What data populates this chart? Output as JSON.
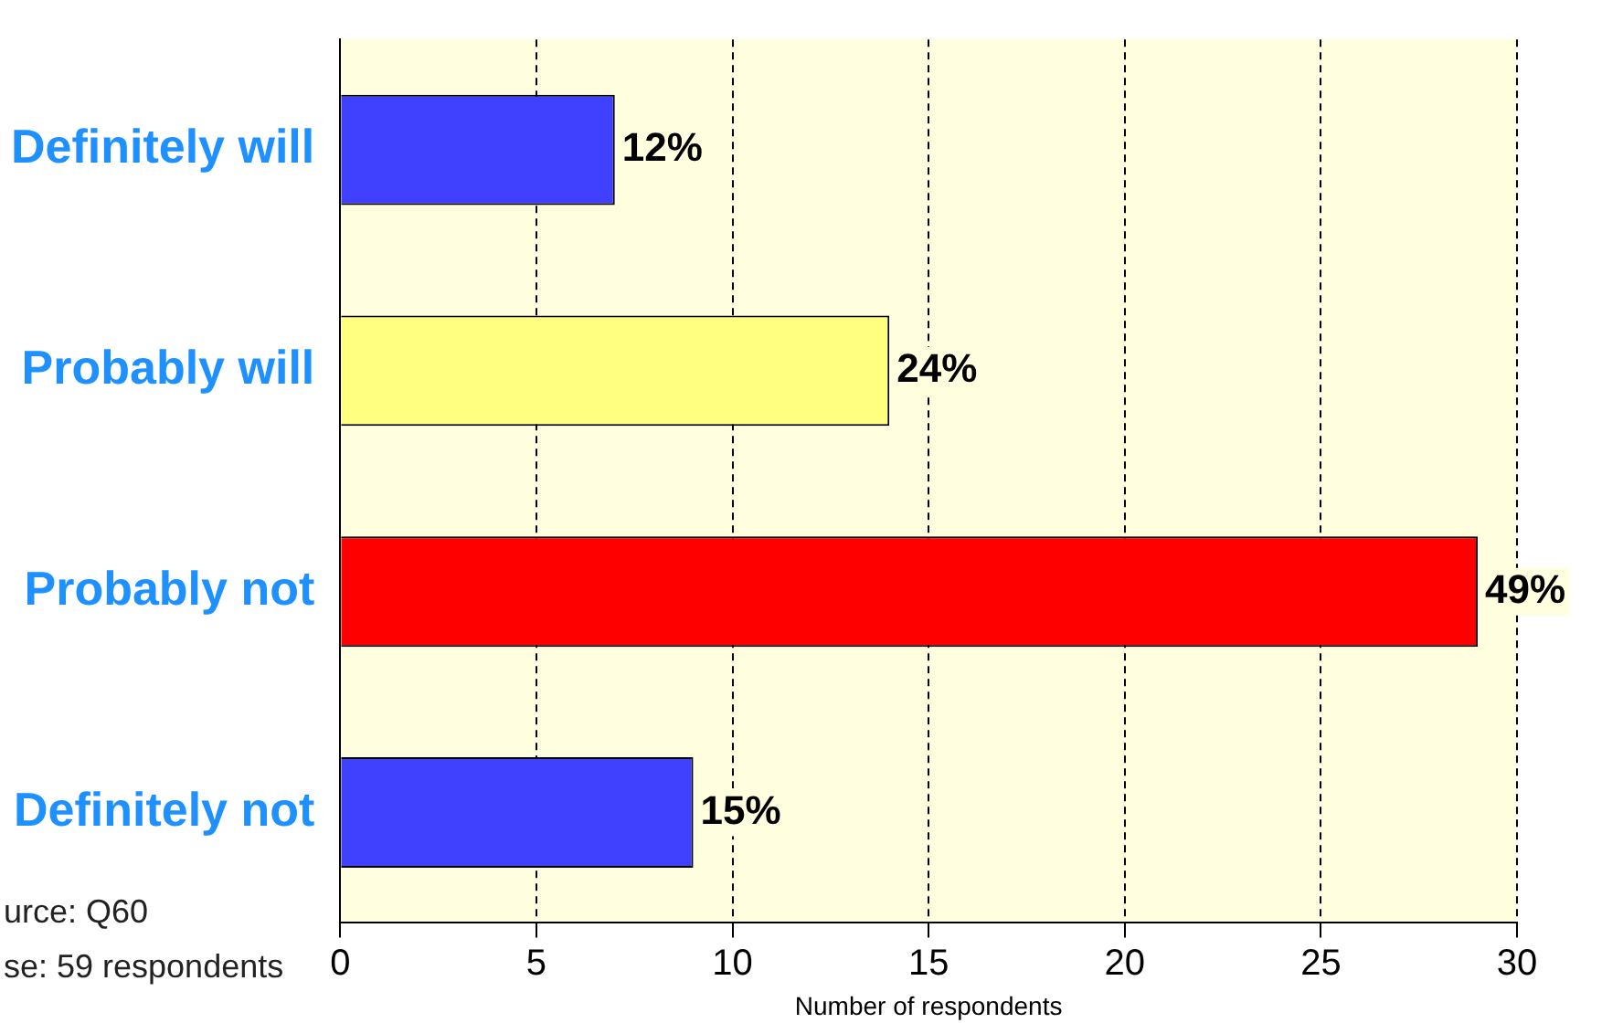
{
  "chart_data": {
    "type": "bar",
    "orientation": "horizontal",
    "categories": [
      "Definitely will",
      "Probably will",
      "Probably not",
      "Definitely not"
    ],
    "values": [
      7,
      14,
      29,
      9
    ],
    "colors": [
      "#4040ff",
      "#ffff80",
      "#ff0000",
      "#4040ff"
    ],
    "xlabel": "Number of respondents",
    "xlim": [
      0,
      30
    ],
    "xticks": [
      0,
      5,
      10,
      15,
      20,
      25,
      30
    ],
    "grid": "x",
    "legend": false,
    "annotations": [
      {
        "text": "12%",
        "x": 7,
        "y": "Definitely will"
      },
      {
        "text": "24%",
        "x": 14,
        "y": "Probably will"
      },
      {
        "text": "49%",
        "x": 29,
        "y": "Probably not"
      },
      {
        "text": "15%",
        "x": 9,
        "y": "Definitely not"
      },
      "urce: Q60",
      "se: 59 respondents"
    ]
  }
}
